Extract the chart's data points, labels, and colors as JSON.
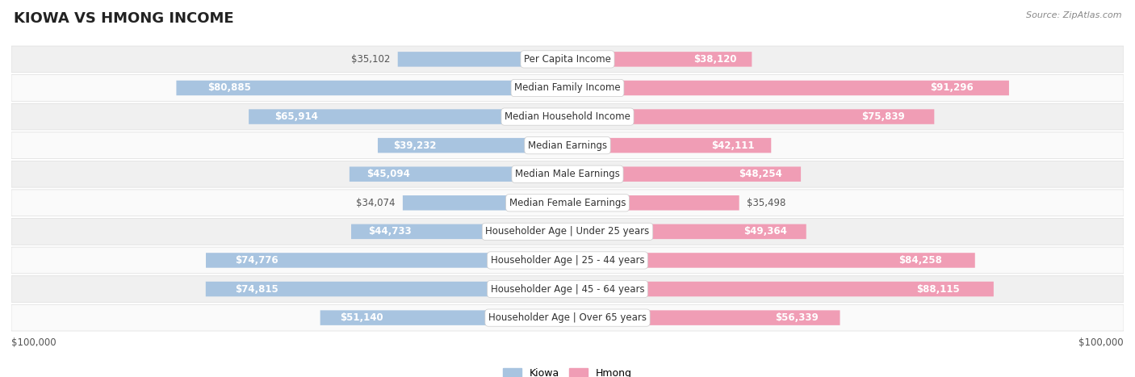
{
  "title": "KIOWA VS HMONG INCOME",
  "source": "Source: ZipAtlas.com",
  "categories": [
    "Per Capita Income",
    "Median Family Income",
    "Median Household Income",
    "Median Earnings",
    "Median Male Earnings",
    "Median Female Earnings",
    "Householder Age | Under 25 years",
    "Householder Age | 25 - 44 years",
    "Householder Age | 45 - 64 years",
    "Householder Age | Over 65 years"
  ],
  "kiowa_values": [
    35102,
    80885,
    65914,
    39232,
    45094,
    34074,
    44733,
    74776,
    74815,
    51140
  ],
  "hmong_values": [
    38120,
    91296,
    75839,
    42111,
    48254,
    35498,
    49364,
    84258,
    88115,
    56339
  ],
  "kiowa_labels": [
    "$35,102",
    "$80,885",
    "$65,914",
    "$39,232",
    "$45,094",
    "$34,074",
    "$44,733",
    "$74,776",
    "$74,815",
    "$51,140"
  ],
  "hmong_labels": [
    "$38,120",
    "$91,296",
    "$75,839",
    "$42,111",
    "$48,254",
    "$35,498",
    "$49,364",
    "$84,258",
    "$88,115",
    "$56,339"
  ],
  "kiowa_color": "#a8c4e0",
  "hmong_color": "#f09db5",
  "kiowa_label_color_inside": "#ffffff",
  "kiowa_label_color_outside": "#555555",
  "hmong_label_color_inside": "#ffffff",
  "hmong_label_color_outside": "#555555",
  "max_value": 100000,
  "bg_color": "#ffffff",
  "row_bg_even": "#f0f0f0",
  "row_bg_odd": "#fafafa",
  "title_fontsize": 13,
  "label_fontsize": 8.5,
  "cat_fontsize": 8.5,
  "axis_label": "$100,000",
  "legend_kiowa": "Kiowa",
  "legend_hmong": "Hmong",
  "inside_label_threshold": 38000
}
